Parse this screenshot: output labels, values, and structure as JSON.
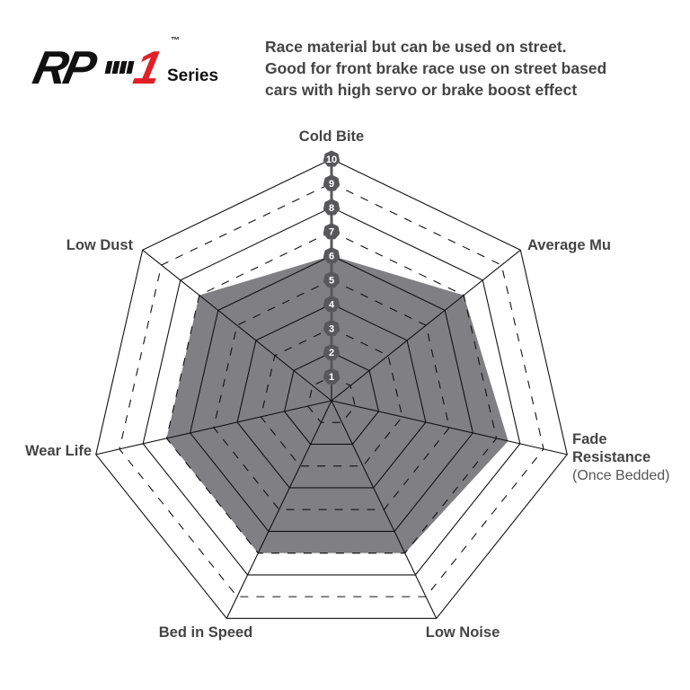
{
  "logo": {
    "text": "RP-1",
    "tm": "™",
    "series": "Series"
  },
  "description": [
    "Race material but can be used on street.",
    "Good for front brake race use on street based",
    "cars with high servo or brake boost effect"
  ],
  "chart_data": {
    "type": "radar",
    "categories": [
      "Cold Bite",
      "Average Mu",
      "Fade Resistance",
      "Low Noise",
      "Bed in Speed",
      "Wear Life",
      "Low Dust"
    ],
    "category_sublabels": {
      "Fade Resistance": "(Once Bedded)"
    },
    "values": [
      6,
      7,
      7.5,
      7,
      7,
      7,
      7
    ],
    "range": [
      0,
      10
    ],
    "ticks": [
      1,
      2,
      3,
      4,
      5,
      6,
      7,
      8,
      9,
      10
    ],
    "fill_color": "#808083",
    "badge_color": "#58585a"
  }
}
